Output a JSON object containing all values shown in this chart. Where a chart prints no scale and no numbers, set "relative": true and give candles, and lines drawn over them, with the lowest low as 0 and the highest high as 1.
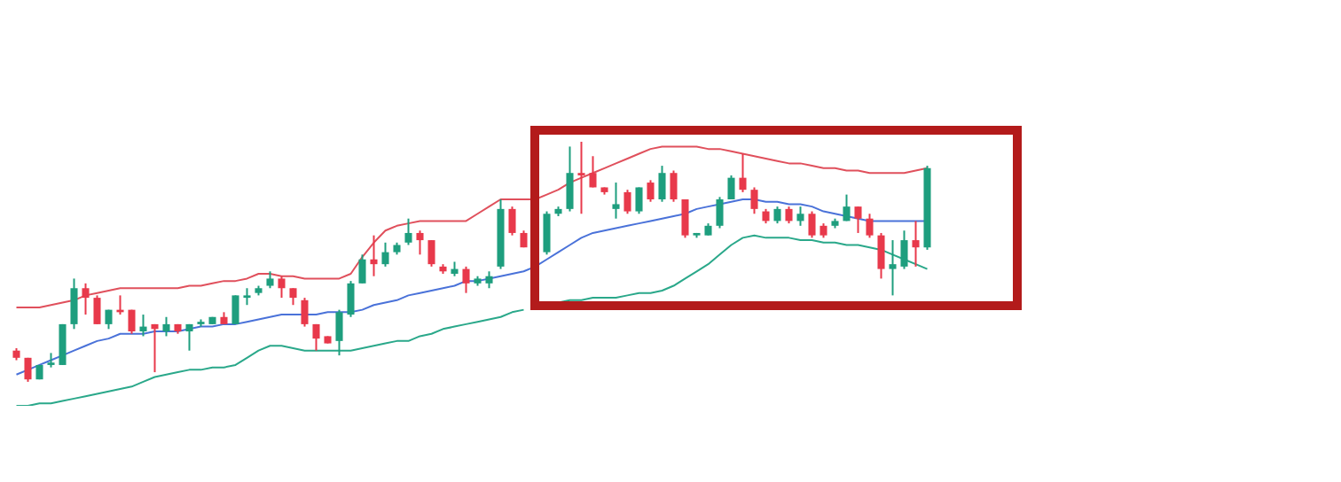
{
  "chart_data": {
    "type": "candlestick",
    "relative": true,
    "categories": [
      null,
      null,
      null,
      null,
      null,
      null,
      null,
      null,
      null,
      null,
      null,
      null,
      null,
      null,
      null,
      null,
      null,
      null,
      null,
      null,
      null,
      null,
      null,
      null,
      null,
      null,
      null,
      null,
      null,
      null,
      null,
      null,
      null,
      null,
      null,
      null,
      null,
      null,
      null,
      null,
      null,
      null,
      null,
      null,
      null,
      null,
      null,
      null,
      null,
      null,
      null,
      null,
      null,
      null,
      null,
      null,
      null,
      null,
      null,
      null,
      null,
      null,
      null,
      null,
      null,
      null,
      null,
      null,
      null,
      null,
      null,
      null,
      null,
      null,
      null,
      null,
      null,
      null,
      null,
      null
    ],
    "ohlc": [
      [
        0.13,
        0.14,
        0.09,
        0.1
      ],
      [
        0.1,
        0.1,
        0.0,
        0.01
      ],
      [
        0.01,
        0.07,
        0.01,
        0.07
      ],
      [
        0.07,
        0.12,
        0.06,
        0.08
      ],
      [
        0.07,
        0.24,
        0.07,
        0.24
      ],
      [
        0.24,
        0.43,
        0.22,
        0.39
      ],
      [
        0.39,
        0.41,
        0.28,
        0.35
      ],
      [
        0.35,
        0.36,
        0.24,
        0.24
      ],
      [
        0.24,
        0.3,
        0.22,
        0.3
      ],
      [
        0.3,
        0.36,
        0.28,
        0.29
      ],
      [
        0.3,
        0.3,
        0.2,
        0.21
      ],
      [
        0.21,
        0.28,
        0.19,
        0.23
      ],
      [
        0.24,
        0.24,
        0.04,
        0.22
      ],
      [
        0.21,
        0.27,
        0.19,
        0.24
      ],
      [
        0.24,
        0.24,
        0.2,
        0.21
      ],
      [
        0.21,
        0.24,
        0.13,
        0.24
      ],
      [
        0.24,
        0.26,
        0.23,
        0.25
      ],
      [
        0.24,
        0.27,
        0.24,
        0.27
      ],
      [
        0.27,
        0.29,
        0.24,
        0.24
      ],
      [
        0.24,
        0.36,
        0.24,
        0.36
      ],
      [
        0.35,
        0.39,
        0.32,
        0.36
      ],
      [
        0.37,
        0.4,
        0.36,
        0.39
      ],
      [
        0.4,
        0.46,
        0.39,
        0.43
      ],
      [
        0.43,
        0.44,
        0.35,
        0.39
      ],
      [
        0.39,
        0.39,
        0.32,
        0.35
      ],
      [
        0.34,
        0.35,
        0.23,
        0.24
      ],
      [
        0.24,
        0.24,
        0.13,
        0.18
      ],
      [
        0.19,
        0.19,
        0.16,
        0.16
      ],
      [
        0.17,
        0.3,
        0.11,
        0.29
      ],
      [
        0.28,
        0.42,
        0.27,
        0.41
      ],
      [
        0.41,
        0.53,
        0.41,
        0.51
      ],
      [
        0.51,
        0.61,
        0.44,
        0.49
      ],
      [
        0.49,
        0.58,
        0.48,
        0.54
      ],
      [
        0.54,
        0.58,
        0.53,
        0.57
      ],
      [
        0.58,
        0.68,
        0.57,
        0.62
      ],
      [
        0.62,
        0.63,
        0.53,
        0.59
      ],
      [
        0.59,
        0.59,
        0.48,
        0.49
      ],
      [
        0.48,
        0.49,
        0.45,
        0.46
      ],
      [
        0.45,
        0.5,
        0.44,
        0.47
      ],
      [
        0.47,
        0.48,
        0.37,
        0.41
      ],
      [
        0.41,
        0.44,
        0.4,
        0.43
      ],
      [
        0.41,
        0.46,
        0.39,
        0.44
      ],
      [
        0.48,
        0.76,
        0.47,
        0.72
      ],
      [
        0.72,
        0.73,
        0.61,
        0.62
      ],
      [
        0.62,
        0.63,
        0.56,
        0.56
      ],
      null,
      [
        0.54,
        0.71,
        0.53,
        0.7
      ],
      [
        0.7,
        0.73,
        0.69,
        0.72
      ],
      [
        0.72,
        0.98,
        0.71,
        0.87
      ],
      [
        0.87,
        1.0,
        0.7,
        0.86
      ],
      [
        0.87,
        0.94,
        0.81,
        0.81
      ],
      [
        0.81,
        0.81,
        0.78,
        0.79
      ],
      [
        0.72,
        0.83,
        0.68,
        0.74
      ],
      [
        0.79,
        0.8,
        0.7,
        0.71
      ],
      [
        0.71,
        0.81,
        0.7,
        0.81
      ],
      [
        0.83,
        0.84,
        0.75,
        0.76
      ],
      [
        0.76,
        0.9,
        0.75,
        0.87
      ],
      [
        0.87,
        0.88,
        0.75,
        0.76
      ],
      [
        0.76,
        0.76,
        0.6,
        0.61
      ],
      [
        0.61,
        0.62,
        0.6,
        0.62
      ],
      [
        0.61,
        0.66,
        0.61,
        0.65
      ],
      [
        0.65,
        0.77,
        0.64,
        0.76
      ],
      [
        0.76,
        0.86,
        0.76,
        0.85
      ],
      [
        0.85,
        0.95,
        0.79,
        0.8
      ],
      [
        0.8,
        0.81,
        0.7,
        0.72
      ],
      [
        0.71,
        0.72,
        0.66,
        0.67
      ],
      [
        0.67,
        0.73,
        0.66,
        0.72
      ],
      [
        0.72,
        0.73,
        0.66,
        0.67
      ],
      [
        0.67,
        0.73,
        0.65,
        0.7
      ],
      [
        0.7,
        0.71,
        0.6,
        0.61
      ],
      [
        0.65,
        0.66,
        0.6,
        0.61
      ],
      [
        0.65,
        0.68,
        0.64,
        0.67
      ],
      [
        0.67,
        0.78,
        0.67,
        0.73
      ],
      [
        0.73,
        0.73,
        0.62,
        0.68
      ],
      [
        0.68,
        0.7,
        0.6,
        0.61
      ],
      [
        0.61,
        0.62,
        0.43,
        0.47
      ],
      [
        0.47,
        0.59,
        0.36,
        0.49
      ],
      [
        0.48,
        0.63,
        0.47,
        0.59
      ],
      [
        0.59,
        0.67,
        0.48,
        0.56
      ],
      [
        0.56,
        0.9,
        0.55,
        0.89
      ]
    ],
    "colors": [
      "#e8394b",
      "#e8394b",
      "#1e9e7e",
      "#1e9e7e",
      "#1e9e7e",
      "#1e9e7e",
      "#e8394b",
      "#e8394b",
      "#1e9e7e",
      "#e8394b",
      "#e8394b",
      "#1e9e7e",
      "#e8394b",
      "#1e9e7e",
      "#e8394b",
      "#1e9e7e",
      "#1e9e7e",
      "#1e9e7e",
      "#e8394b",
      "#1e9e7e",
      "#1e9e7e",
      "#1e9e7e",
      "#1e9e7e",
      "#e8394b",
      "#e8394b",
      "#e8394b",
      "#e8394b",
      "#e8394b",
      "#1e9e7e",
      "#1e9e7e",
      "#1e9e7e",
      "#e8394b",
      "#1e9e7e",
      "#1e9e7e",
      "#1e9e7e",
      "#e8394b",
      "#e8394b",
      "#e8394b",
      "#1e9e7e",
      "#e8394b",
      "#1e9e7e",
      "#1e9e7e",
      "#1e9e7e",
      "#e8394b",
      "#e8394b",
      null,
      "#1e9e7e",
      "#1e9e7e",
      "#1e9e7e",
      "#e8394b",
      "#e8394b",
      "#e8394b",
      "#1e9e7e",
      "#e8394b",
      "#1e9e7e",
      "#e8394b",
      "#1e9e7e",
      "#e8394b",
      "#e8394b",
      "#1e9e7e",
      "#1e9e7e",
      "#1e9e7e",
      "#1e9e7e",
      "#e8394b",
      "#e8394b",
      "#e8394b",
      "#1e9e7e",
      "#e8394b",
      "#1e9e7e",
      "#e8394b",
      "#e8394b",
      "#1e9e7e",
      "#1e9e7e",
      "#e8394b",
      "#e8394b",
      "#e8394b",
      "#1e9e7e",
      "#1e9e7e",
      "#e8394b",
      "#1e9e7e"
    ],
    "series": [
      {
        "type": "line",
        "color": "#e0505c",
        "values": [
          0.31,
          0.31,
          0.31,
          0.32,
          0.33,
          0.34,
          0.36,
          0.37,
          0.38,
          0.39,
          0.39,
          0.39,
          0.39,
          0.39,
          0.39,
          0.4,
          0.4,
          0.41,
          0.42,
          0.42,
          0.43,
          0.45,
          0.45,
          0.44,
          0.44,
          0.43,
          0.43,
          0.43,
          0.43,
          0.45,
          0.52,
          0.58,
          0.63,
          0.65,
          0.66,
          0.67,
          0.67,
          0.67,
          0.67,
          0.67,
          0.7,
          0.73,
          0.76,
          0.76,
          0.76,
          0.76,
          0.78,
          0.8,
          0.83,
          0.85,
          0.87,
          0.89,
          0.91,
          0.93,
          0.95,
          0.97,
          0.98,
          0.98,
          0.98,
          0.98,
          0.97,
          0.97,
          0.96,
          0.95,
          0.94,
          0.93,
          0.92,
          0.91,
          0.91,
          0.9,
          0.89,
          0.89,
          0.88,
          0.88,
          0.87,
          0.87,
          0.87,
          0.87,
          0.88,
          0.89
        ]
      },
      {
        "type": "line",
        "color": "#4a72d9",
        "values": [
          0.03,
          0.05,
          0.07,
          0.09,
          0.11,
          0.13,
          0.15,
          0.17,
          0.18,
          0.2,
          0.2,
          0.2,
          0.21,
          0.21,
          0.21,
          0.22,
          0.23,
          0.23,
          0.24,
          0.24,
          0.25,
          0.26,
          0.27,
          0.28,
          0.28,
          0.28,
          0.28,
          0.29,
          0.29,
          0.29,
          0.3,
          0.32,
          0.33,
          0.34,
          0.36,
          0.37,
          0.38,
          0.39,
          0.4,
          0.42,
          0.42,
          0.43,
          0.44,
          0.45,
          0.46,
          0.48,
          0.51,
          0.54,
          0.57,
          0.6,
          0.62,
          0.63,
          0.64,
          0.65,
          0.66,
          0.67,
          0.68,
          0.69,
          0.7,
          0.72,
          0.73,
          0.74,
          0.75,
          0.76,
          0.76,
          0.75,
          0.75,
          0.74,
          0.74,
          0.73,
          0.71,
          0.7,
          0.69,
          0.68,
          0.67,
          0.67,
          0.67,
          0.67,
          0.67,
          0.67
        ]
      },
      {
        "type": "line",
        "color": "#2aa88a",
        "values": [
          -0.1,
          -0.1,
          -0.09,
          -0.09,
          -0.08,
          -0.07,
          -0.06,
          -0.05,
          -0.04,
          -0.03,
          -0.02,
          0.0,
          0.02,
          0.03,
          0.04,
          0.05,
          0.05,
          0.06,
          0.06,
          0.07,
          0.1,
          0.13,
          0.15,
          0.15,
          0.14,
          0.13,
          0.13,
          0.13,
          0.13,
          0.13,
          0.14,
          0.15,
          0.16,
          0.17,
          0.17,
          0.19,
          0.2,
          0.22,
          0.23,
          0.24,
          0.25,
          0.26,
          0.27,
          0.29,
          0.3,
          null,
          null,
          0.33,
          0.34,
          0.34,
          0.35,
          0.35,
          0.35,
          0.36,
          0.37,
          0.37,
          0.38,
          0.4,
          0.43,
          0.46,
          0.49,
          0.53,
          0.57,
          0.6,
          0.61,
          0.6,
          0.6,
          0.6,
          0.59,
          0.59,
          0.58,
          0.58,
          0.57,
          0.57,
          0.56,
          0.55,
          0.53,
          0.51,
          0.49,
          0.47
        ]
      }
    ]
  }
}
